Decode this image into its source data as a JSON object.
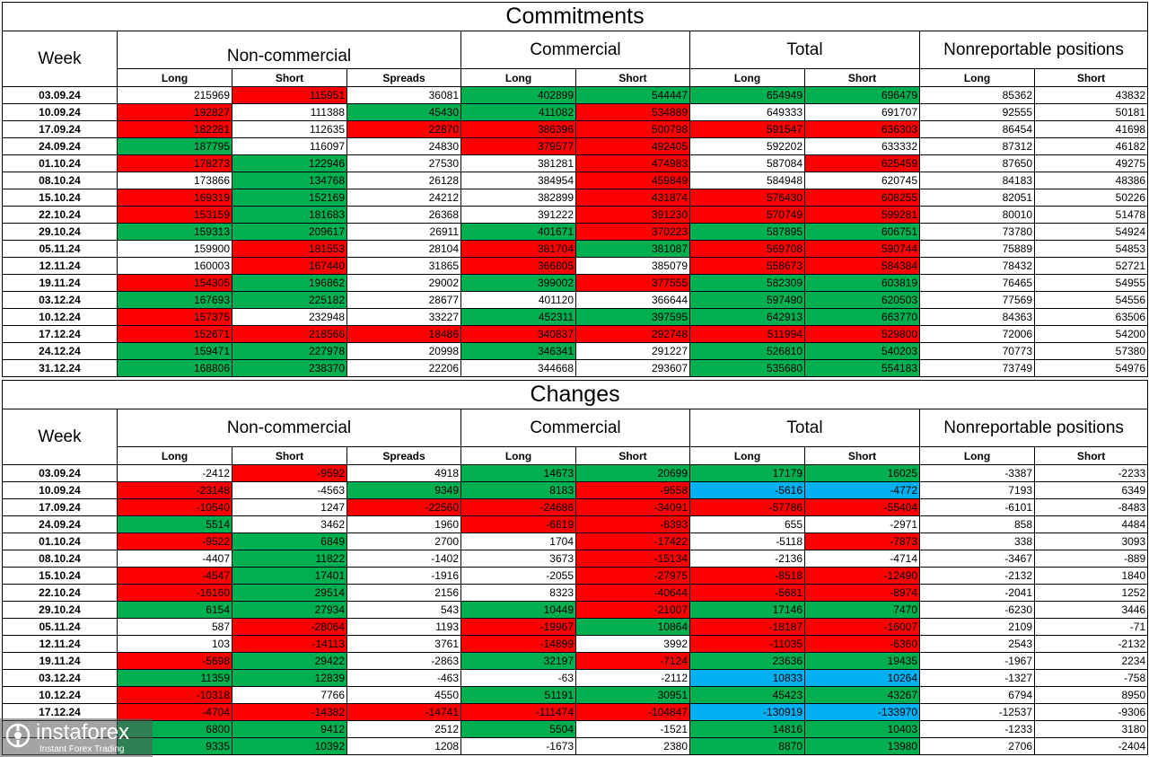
{
  "colors": {
    "red": "#ff0000",
    "green": "#00b050",
    "blue": "#00b0f0",
    "white": "#ffffff"
  },
  "header": {
    "week": "Week",
    "groups": [
      "Non-commercial",
      "Commercial",
      "Total",
      "Nonreportable positions"
    ],
    "subs": [
      "Long",
      "Short",
      "Spreads",
      "Long",
      "Short",
      "Long",
      "Short",
      "Long",
      "Short"
    ]
  },
  "commitments": {
    "title": "Commitments",
    "rows": [
      {
        "week": "03.09.24",
        "values": [
          "215969",
          "115951",
          "36081",
          "402899",
          "544447",
          "654949",
          "696479",
          "85362",
          "43832"
        ],
        "colors": [
          "white",
          "red",
          "white",
          "green",
          "green",
          "green",
          "green",
          "white",
          "white"
        ]
      },
      {
        "week": "10.09.24",
        "values": [
          "192827",
          "111388",
          "45430",
          "411082",
          "534889",
          "649333",
          "691707",
          "92555",
          "50181"
        ],
        "colors": [
          "red",
          "white",
          "green",
          "green",
          "red",
          "white",
          "white",
          "white",
          "white"
        ]
      },
      {
        "week": "17.09.24",
        "values": [
          "182281",
          "112635",
          "22870",
          "386396",
          "500798",
          "591547",
          "636303",
          "86454",
          "41698"
        ],
        "colors": [
          "red",
          "white",
          "red",
          "red",
          "red",
          "red",
          "red",
          "white",
          "white"
        ]
      },
      {
        "week": "24.09.24",
        "values": [
          "187795",
          "116097",
          "24830",
          "379577",
          "492405",
          "592202",
          "633332",
          "87312",
          "46182"
        ],
        "colors": [
          "green",
          "white",
          "white",
          "red",
          "red",
          "white",
          "white",
          "white",
          "white"
        ]
      },
      {
        "week": "01.10.24",
        "values": [
          "178273",
          "122946",
          "27530",
          "381281",
          "474983",
          "587084",
          "625459",
          "87650",
          "49275"
        ],
        "colors": [
          "red",
          "green",
          "white",
          "white",
          "red",
          "white",
          "red",
          "white",
          "white"
        ]
      },
      {
        "week": "08.10.24",
        "values": [
          "173866",
          "134768",
          "26128",
          "384954",
          "459849",
          "584948",
          "620745",
          "84183",
          "48386"
        ],
        "colors": [
          "white",
          "green",
          "white",
          "white",
          "red",
          "white",
          "white",
          "white",
          "white"
        ]
      },
      {
        "week": "15.10.24",
        "values": [
          "169319",
          "152169",
          "24212",
          "382899",
          "431874",
          "576430",
          "608255",
          "82051",
          "50226"
        ],
        "colors": [
          "red",
          "green",
          "white",
          "white",
          "red",
          "red",
          "red",
          "white",
          "white"
        ]
      },
      {
        "week": "22.10.24",
        "values": [
          "153159",
          "181683",
          "26368",
          "391222",
          "391230",
          "570749",
          "599281",
          "80010",
          "51478"
        ],
        "colors": [
          "red",
          "green",
          "white",
          "white",
          "red",
          "red",
          "red",
          "white",
          "white"
        ]
      },
      {
        "week": "29.10.24",
        "values": [
          "159313",
          "209617",
          "26911",
          "401671",
          "370223",
          "587895",
          "606751",
          "73780",
          "54924"
        ],
        "colors": [
          "green",
          "green",
          "white",
          "green",
          "red",
          "green",
          "green",
          "white",
          "white"
        ]
      },
      {
        "week": "05.11.24",
        "values": [
          "159900",
          "181553",
          "28104",
          "381704",
          "381087",
          "569708",
          "590744",
          "75889",
          "54853"
        ],
        "colors": [
          "white",
          "red",
          "white",
          "red",
          "green",
          "red",
          "red",
          "white",
          "white"
        ]
      },
      {
        "week": "12.11.24",
        "values": [
          "160003",
          "167440",
          "31865",
          "366805",
          "385079",
          "558673",
          "584384",
          "78432",
          "52721"
        ],
        "colors": [
          "white",
          "red",
          "white",
          "red",
          "white",
          "red",
          "red",
          "white",
          "white"
        ]
      },
      {
        "week": "19.11.24",
        "values": [
          "154305",
          "196862",
          "29002",
          "399002",
          "377555",
          "582309",
          "603819",
          "76465",
          "54955"
        ],
        "colors": [
          "red",
          "green",
          "white",
          "green",
          "red",
          "green",
          "green",
          "white",
          "white"
        ]
      },
      {
        "week": "03.12.24",
        "values": [
          "167693",
          "225182",
          "28677",
          "401120",
          "366644",
          "597490",
          "620503",
          "77569",
          "54556"
        ],
        "colors": [
          "green",
          "green",
          "white",
          "white",
          "white",
          "green",
          "green",
          "white",
          "white"
        ]
      },
      {
        "week": "10.12.24",
        "values": [
          "157375",
          "232948",
          "33227",
          "452311",
          "397595",
          "642913",
          "663770",
          "84363",
          "63506"
        ],
        "colors": [
          "red",
          "white",
          "white",
          "green",
          "green",
          "green",
          "green",
          "white",
          "white"
        ]
      },
      {
        "week": "17.12.24",
        "values": [
          "152671",
          "218566",
          "18486",
          "340837",
          "292748",
          "511994",
          "529800",
          "72006",
          "54200"
        ],
        "colors": [
          "red",
          "red",
          "red",
          "red",
          "red",
          "red",
          "red",
          "white",
          "white"
        ]
      },
      {
        "week": "24.12.24",
        "values": [
          "159471",
          "227978",
          "20998",
          "346341",
          "291227",
          "526810",
          "540203",
          "70773",
          "57380"
        ],
        "colors": [
          "green",
          "green",
          "white",
          "green",
          "white",
          "green",
          "green",
          "white",
          "white"
        ]
      },
      {
        "week": "31.12.24",
        "values": [
          "168806",
          "238370",
          "22206",
          "344668",
          "293607",
          "535680",
          "554183",
          "73749",
          "54976"
        ],
        "colors": [
          "green",
          "green",
          "white",
          "white",
          "white",
          "green",
          "green",
          "white",
          "white"
        ]
      }
    ]
  },
  "changes": {
    "title": "Changes",
    "rows": [
      {
        "week": "03.09.24",
        "values": [
          "-2412",
          "-9592",
          "4918",
          "14673",
          "20699",
          "17179",
          "16025",
          "-3387",
          "-2233"
        ],
        "colors": [
          "white",
          "red",
          "white",
          "green",
          "green",
          "green",
          "green",
          "white",
          "white"
        ]
      },
      {
        "week": "10.09.24",
        "values": [
          "-23148",
          "-4563",
          "9349",
          "8183",
          "-9558",
          "-5616",
          "-4772",
          "7193",
          "6349"
        ],
        "colors": [
          "red",
          "white",
          "green",
          "green",
          "red",
          "blue",
          "blue",
          "white",
          "white"
        ]
      },
      {
        "week": "17.09.24",
        "values": [
          "-10540",
          "1247",
          "-22560",
          "-24686",
          "-34091",
          "-57786",
          "-55404",
          "-6101",
          "-8483"
        ],
        "colors": [
          "red",
          "white",
          "red",
          "red",
          "red",
          "red",
          "red",
          "white",
          "white"
        ]
      },
      {
        "week": "24.09.24",
        "values": [
          "5514",
          "3462",
          "1960",
          "-6819",
          "-8393",
          "655",
          "-2971",
          "858",
          "4484"
        ],
        "colors": [
          "green",
          "white",
          "white",
          "red",
          "red",
          "white",
          "white",
          "white",
          "white"
        ]
      },
      {
        "week": "01.10.24",
        "values": [
          "-9522",
          "6849",
          "2700",
          "1704",
          "-17422",
          "-5118",
          "-7873",
          "338",
          "3093"
        ],
        "colors": [
          "red",
          "green",
          "white",
          "white",
          "red",
          "white",
          "red",
          "white",
          "white"
        ]
      },
      {
        "week": "08.10.24",
        "values": [
          "-4407",
          "11822",
          "-1402",
          "3673",
          "-15134",
          "-2136",
          "-4714",
          "-3467",
          "-889"
        ],
        "colors": [
          "white",
          "green",
          "white",
          "white",
          "red",
          "white",
          "white",
          "white",
          "white"
        ]
      },
      {
        "week": "15.10.24",
        "values": [
          "-4547",
          "17401",
          "-1916",
          "-2055",
          "-27975",
          "-8518",
          "-12490",
          "-2132",
          "1840"
        ],
        "colors": [
          "red",
          "green",
          "white",
          "white",
          "red",
          "red",
          "red",
          "white",
          "white"
        ]
      },
      {
        "week": "22.10.24",
        "values": [
          "-16160",
          "29514",
          "2156",
          "8323",
          "-40644",
          "-5681",
          "-8974",
          "-2041",
          "1252"
        ],
        "colors": [
          "red",
          "green",
          "white",
          "white",
          "red",
          "red",
          "red",
          "white",
          "white"
        ]
      },
      {
        "week": "29.10.24",
        "values": [
          "6154",
          "27934",
          "543",
          "10449",
          "-21007",
          "17146",
          "7470",
          "-6230",
          "3446"
        ],
        "colors": [
          "green",
          "green",
          "white",
          "green",
          "red",
          "green",
          "green",
          "white",
          "white"
        ]
      },
      {
        "week": "05.11.24",
        "values": [
          "587",
          "-28064",
          "1193",
          "-19967",
          "10864",
          "-18187",
          "-16007",
          "2109",
          "-71"
        ],
        "colors": [
          "white",
          "red",
          "white",
          "red",
          "green",
          "red",
          "red",
          "white",
          "white"
        ]
      },
      {
        "week": "12.11.24",
        "values": [
          "103",
          "-14113",
          "3761",
          "-14899",
          "3992",
          "-11035",
          "-6360",
          "2543",
          "-2132"
        ],
        "colors": [
          "white",
          "red",
          "white",
          "red",
          "white",
          "red",
          "red",
          "white",
          "white"
        ]
      },
      {
        "week": "19.11.24",
        "values": [
          "-5698",
          "29422",
          "-2863",
          "32197",
          "-7124",
          "23636",
          "19435",
          "-1967",
          "2234"
        ],
        "colors": [
          "red",
          "green",
          "white",
          "green",
          "red",
          "green",
          "green",
          "white",
          "white"
        ]
      },
      {
        "week": "03.12.24",
        "values": [
          "11359",
          "12839",
          "-463",
          "-63",
          "-2112",
          "10833",
          "10264",
          "-1327",
          "-758"
        ],
        "colors": [
          "green",
          "green",
          "white",
          "white",
          "white",
          "blue",
          "blue",
          "white",
          "white"
        ]
      },
      {
        "week": "10.12.24",
        "values": [
          "-10318",
          "7766",
          "4550",
          "51191",
          "30951",
          "45423",
          "43267",
          "6794",
          "8950"
        ],
        "colors": [
          "red",
          "white",
          "white",
          "green",
          "green",
          "green",
          "green",
          "white",
          "white"
        ]
      },
      {
        "week": "17.12.24",
        "values": [
          "-4704",
          "-14382",
          "-14741",
          "-111474",
          "-104847",
          "-130919",
          "-133970",
          "-12537",
          "-9306"
        ],
        "colors": [
          "red",
          "red",
          "red",
          "red",
          "red",
          "blue",
          "blue",
          "white",
          "white"
        ]
      },
      {
        "week": "",
        "values": [
          "6800",
          "9412",
          "2512",
          "5504",
          "-1521",
          "14816",
          "10403",
          "-1233",
          "3180"
        ],
        "colors": [
          "green",
          "green",
          "white",
          "green",
          "white",
          "green",
          "green",
          "white",
          "white"
        ]
      },
      {
        "week": "",
        "values": [
          "9335",
          "10392",
          "1208",
          "-1673",
          "2380",
          "8870",
          "13980",
          "2706",
          "-2404"
        ],
        "colors": [
          "green",
          "green",
          "white",
          "white",
          "white",
          "green",
          "green",
          "white",
          "white"
        ]
      }
    ]
  },
  "watermark": {
    "brand": "instaforex",
    "tagline": "Instant Forex Trading"
  }
}
